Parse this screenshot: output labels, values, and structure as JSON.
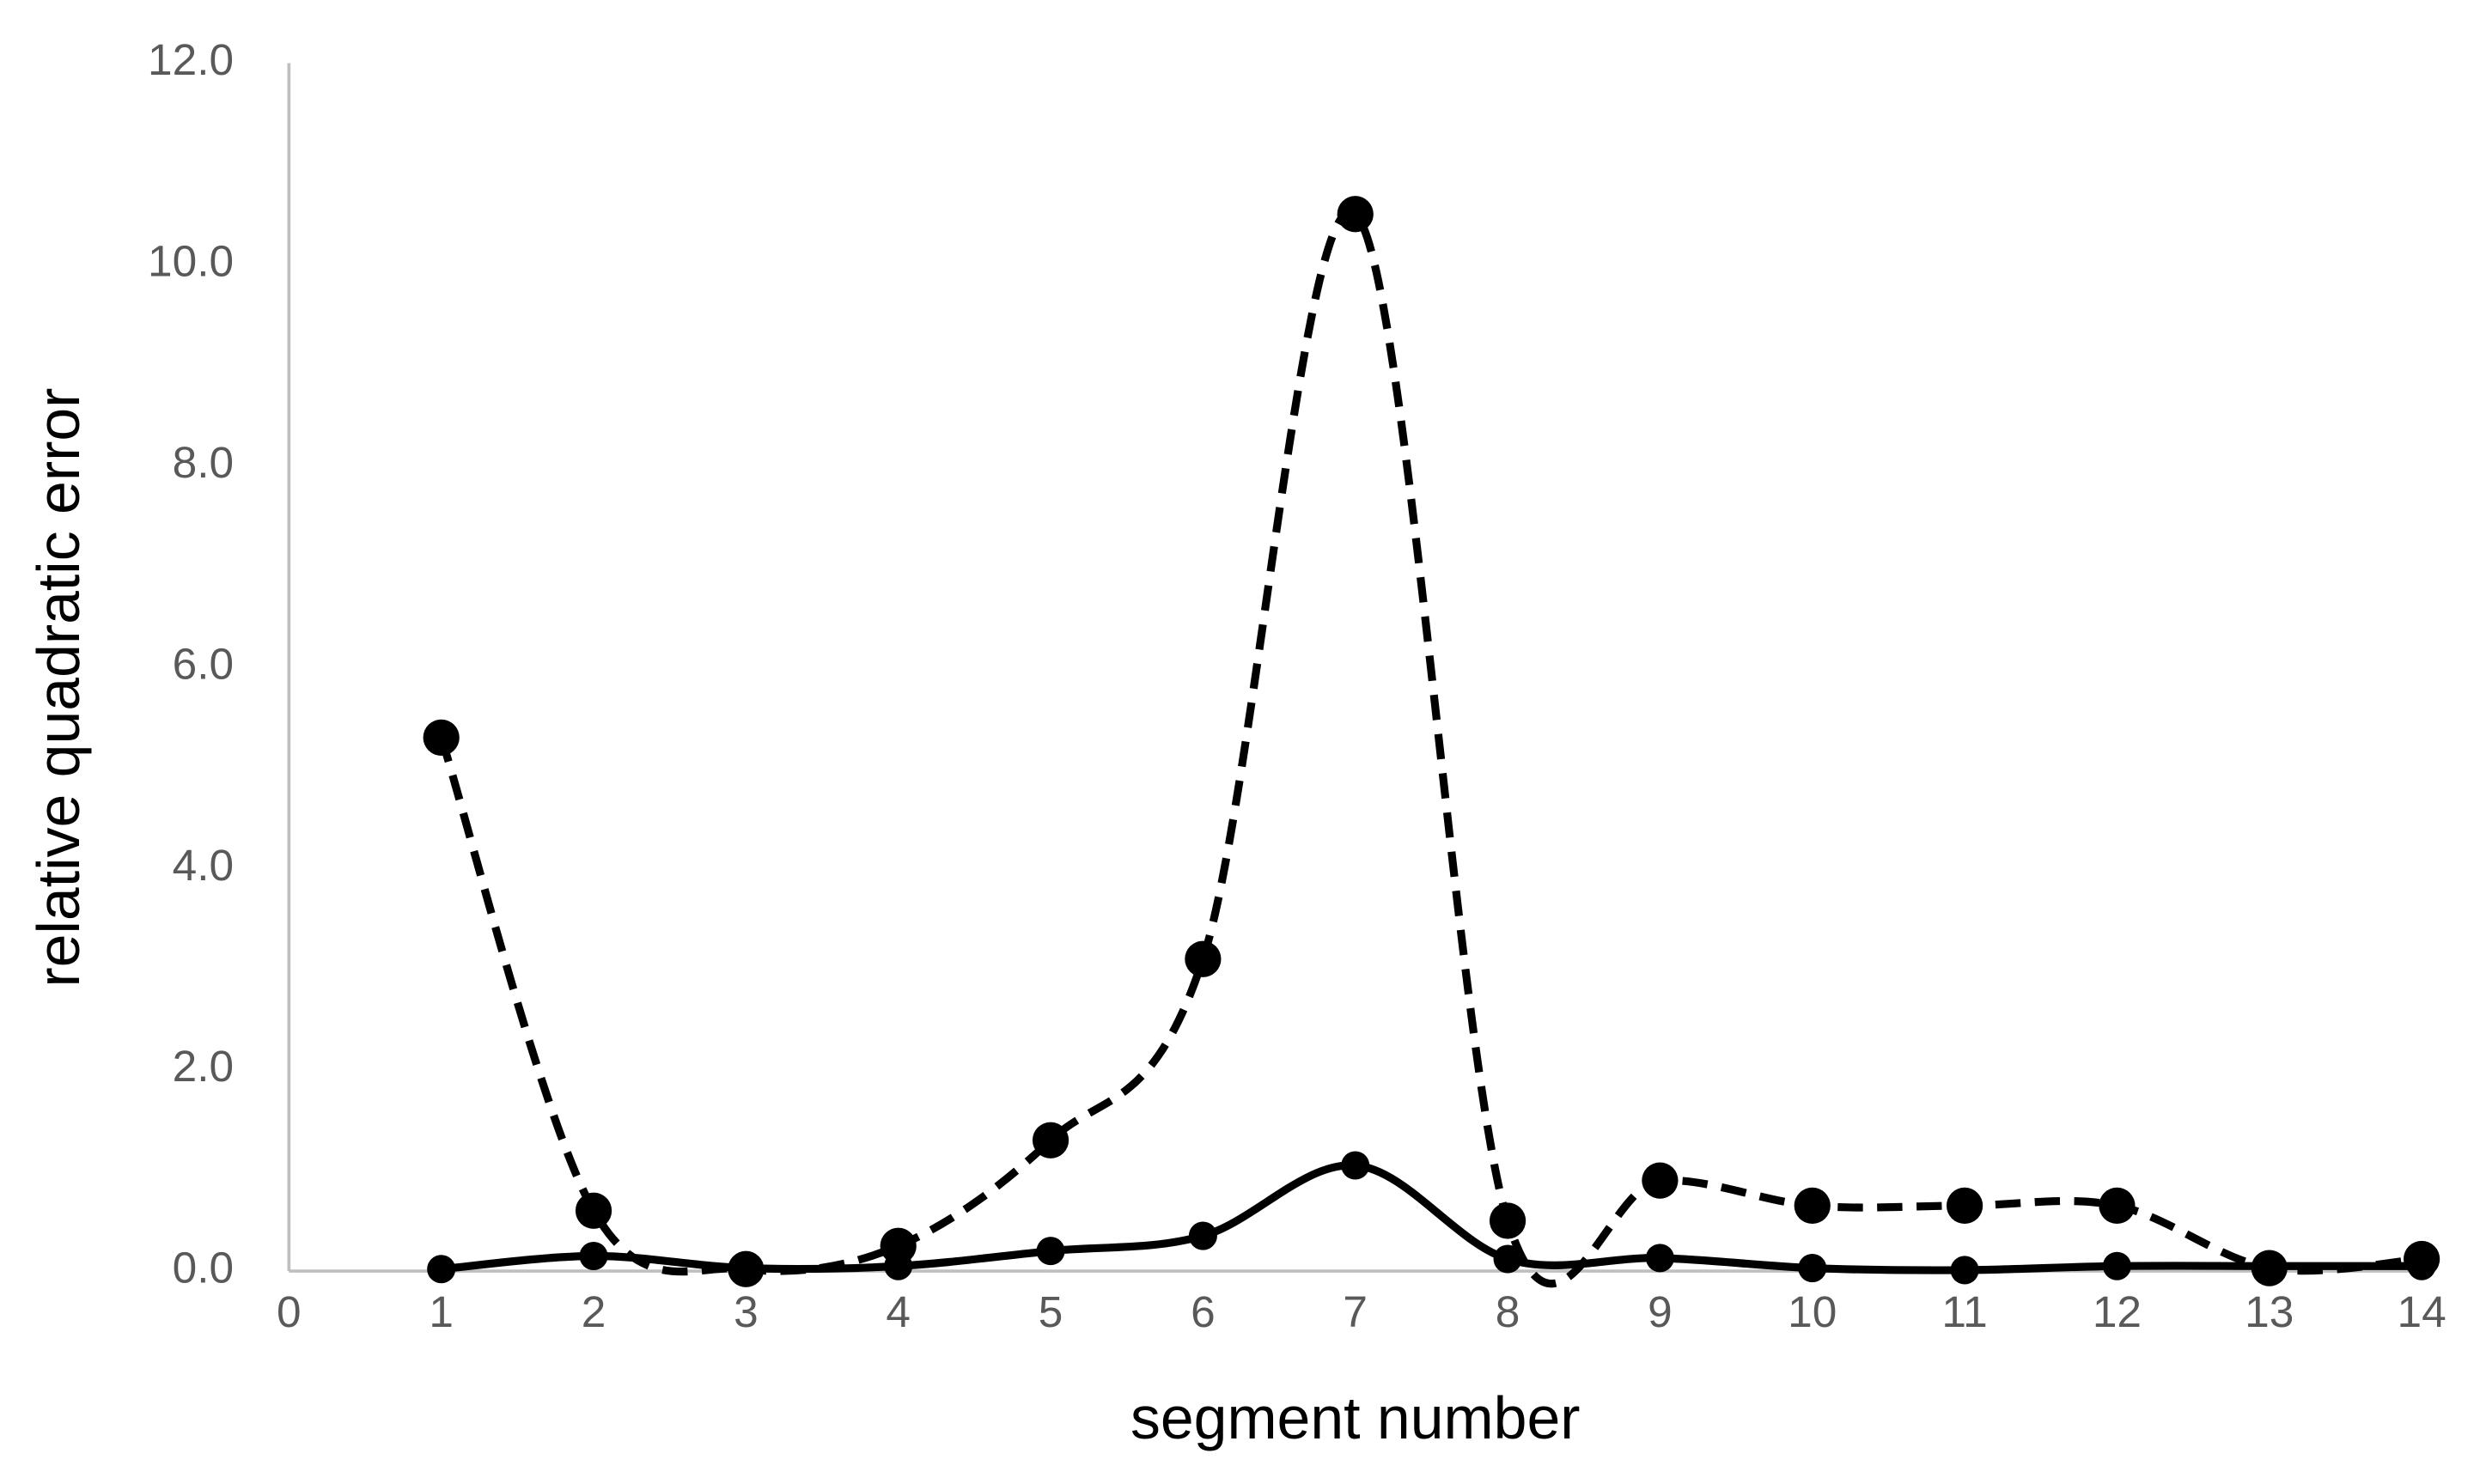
{
  "chart_data": {
    "type": "line",
    "x_label": "segment number",
    "y_label": "relative quadratic error",
    "xlim": [
      0,
      14
    ],
    "xticks": [
      0,
      1,
      2,
      3,
      4,
      5,
      6,
      7,
      8,
      9,
      10,
      11,
      12,
      13,
      14
    ],
    "ylim": [
      0,
      12
    ],
    "yticks": [
      {
        "value": 0,
        "label": "0.0"
      },
      {
        "value": 2,
        "label": "2.0"
      },
      {
        "value": 4,
        "label": "4.0"
      },
      {
        "value": 6,
        "label": "6.0"
      },
      {
        "value": 8,
        "label": "8.0"
      },
      {
        "value": 10,
        "label": "10.0"
      },
      {
        "value": 12,
        "label": "12.0"
      }
    ],
    "grid": false,
    "x": [
      1,
      2,
      3,
      4,
      5,
      6,
      7,
      8,
      9,
      10,
      11,
      12,
      13,
      14
    ],
    "series": [
      {
        "color": "#000000",
        "dashed": true,
        "values": [
          5.3,
          0.6,
          0.02,
          0.25,
          1.3,
          3.1,
          10.5,
          0.5,
          0.9,
          0.65,
          0.65,
          0.65,
          0.03,
          0.12
        ]
      },
      {
        "color": "#000000",
        "dashed": false,
        "values": [
          0.02,
          0.15,
          0.03,
          0.05,
          0.2,
          0.35,
          1.05,
          0.12,
          0.13,
          0.03,
          0.01,
          0.05,
          0.05,
          0.05
        ]
      }
    ]
  }
}
